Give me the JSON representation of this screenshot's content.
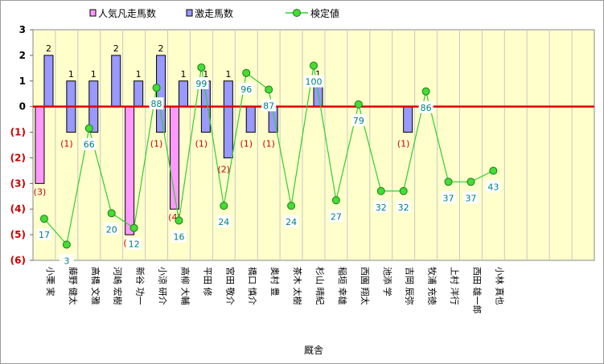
{
  "chart_data": {
    "type": "bar",
    "xlabel": "厩舎",
    "ylim": [
      -6,
      3
    ],
    "yticks": [
      {
        "value": 3,
        "label": "3"
      },
      {
        "value": 2,
        "label": "2"
      },
      {
        "value": 1,
        "label": "1"
      },
      {
        "value": 0,
        "label": "0"
      },
      {
        "value": -1,
        "label": "(1)"
      },
      {
        "value": -2,
        "label": "(2)"
      },
      {
        "value": -3,
        "label": "(3)"
      },
      {
        "value": -4,
        "label": "(4)"
      },
      {
        "value": -5,
        "label": "(5)"
      },
      {
        "value": -6,
        "label": "(6)"
      }
    ],
    "categories": [
      "小栗 実",
      "藤野 健太",
      "高橋 文雅",
      "河嶋 宏樹",
      "新谷 功一",
      "小涼 研介",
      "高柳 大輔",
      "平田 修",
      "宮田 敬介",
      "橋口 慎介",
      "奥村 豊",
      "茶木 太樹",
      "杉山 晴紀",
      "稲垣 幸雄",
      "西園 翔太",
      "池添 学",
      "吉岡 辰弥",
      "牧浦 充徳",
      "上村 洋行",
      "西田 雄一郎",
      "小林 真也",
      "",
      "",
      "",
      ""
    ],
    "series": [
      {
        "name": "人気凡走馬数",
        "color": "#ff99ff",
        "values": [
          -3,
          0,
          0,
          0,
          -5,
          0,
          -4,
          0,
          0,
          0,
          0,
          0,
          0,
          0,
          0,
          0,
          0,
          0,
          0,
          0,
          0,
          null,
          null,
          null,
          null
        ],
        "labels": [
          "(3)",
          "",
          "",
          "",
          "(5)",
          "",
          "(4)",
          "",
          "",
          "",
          "",
          "",
          "",
          "",
          "",
          "",
          "",
          "",
          "",
          "",
          "",
          "",
          "",
          "",
          ""
        ]
      },
      {
        "name": "激走馬数",
        "color": "#9999ff",
        "values": [
          2,
          1,
          1,
          2,
          1,
          2,
          1,
          1,
          1,
          0,
          0,
          0,
          1,
          0,
          0,
          0,
          0,
          0,
          0,
          0,
          0,
          null,
          null,
          null,
          null
        ],
        "labels": [
          "2",
          "1",
          "1",
          "2",
          "1",
          "2",
          "1",
          "1",
          "1",
          "",
          "",
          "",
          "1",
          "",
          "",
          "",
          "",
          "",
          "",
          "",
          "",
          "",
          "",
          "",
          ""
        ],
        "neg_values": [
          0,
          -1,
          -1,
          0,
          0,
          -1,
          0,
          -1,
          -2,
          -1,
          -1,
          0,
          0,
          0,
          0,
          0,
          -1,
          0,
          0,
          0,
          0,
          null,
          null,
          null,
          null
        ],
        "neg_labels": [
          "",
          "(1)",
          "(1)",
          "",
          "",
          "(1)",
          "",
          "(1)",
          "(2)",
          "(1)",
          "(1)",
          "",
          "",
          "",
          "",
          "",
          "(1)",
          "",
          "",
          "",
          "",
          "",
          "",
          "",
          ""
        ]
      },
      {
        "name": "検定値",
        "color": "#33cc33",
        "values": [
          17,
          3,
          66,
          20,
          12,
          88,
          16,
          99,
          24,
          96,
          87,
          24,
          100,
          27,
          79,
          32,
          32,
          86,
          37,
          37,
          43,
          null,
          null,
          null,
          null
        ]
      }
    ],
    "line_scale": {
      "value_min": 0,
      "value_max": 100,
      "y_min": -5.6,
      "y_max": 1.6
    },
    "legend_position": "top",
    "grid": true
  }
}
